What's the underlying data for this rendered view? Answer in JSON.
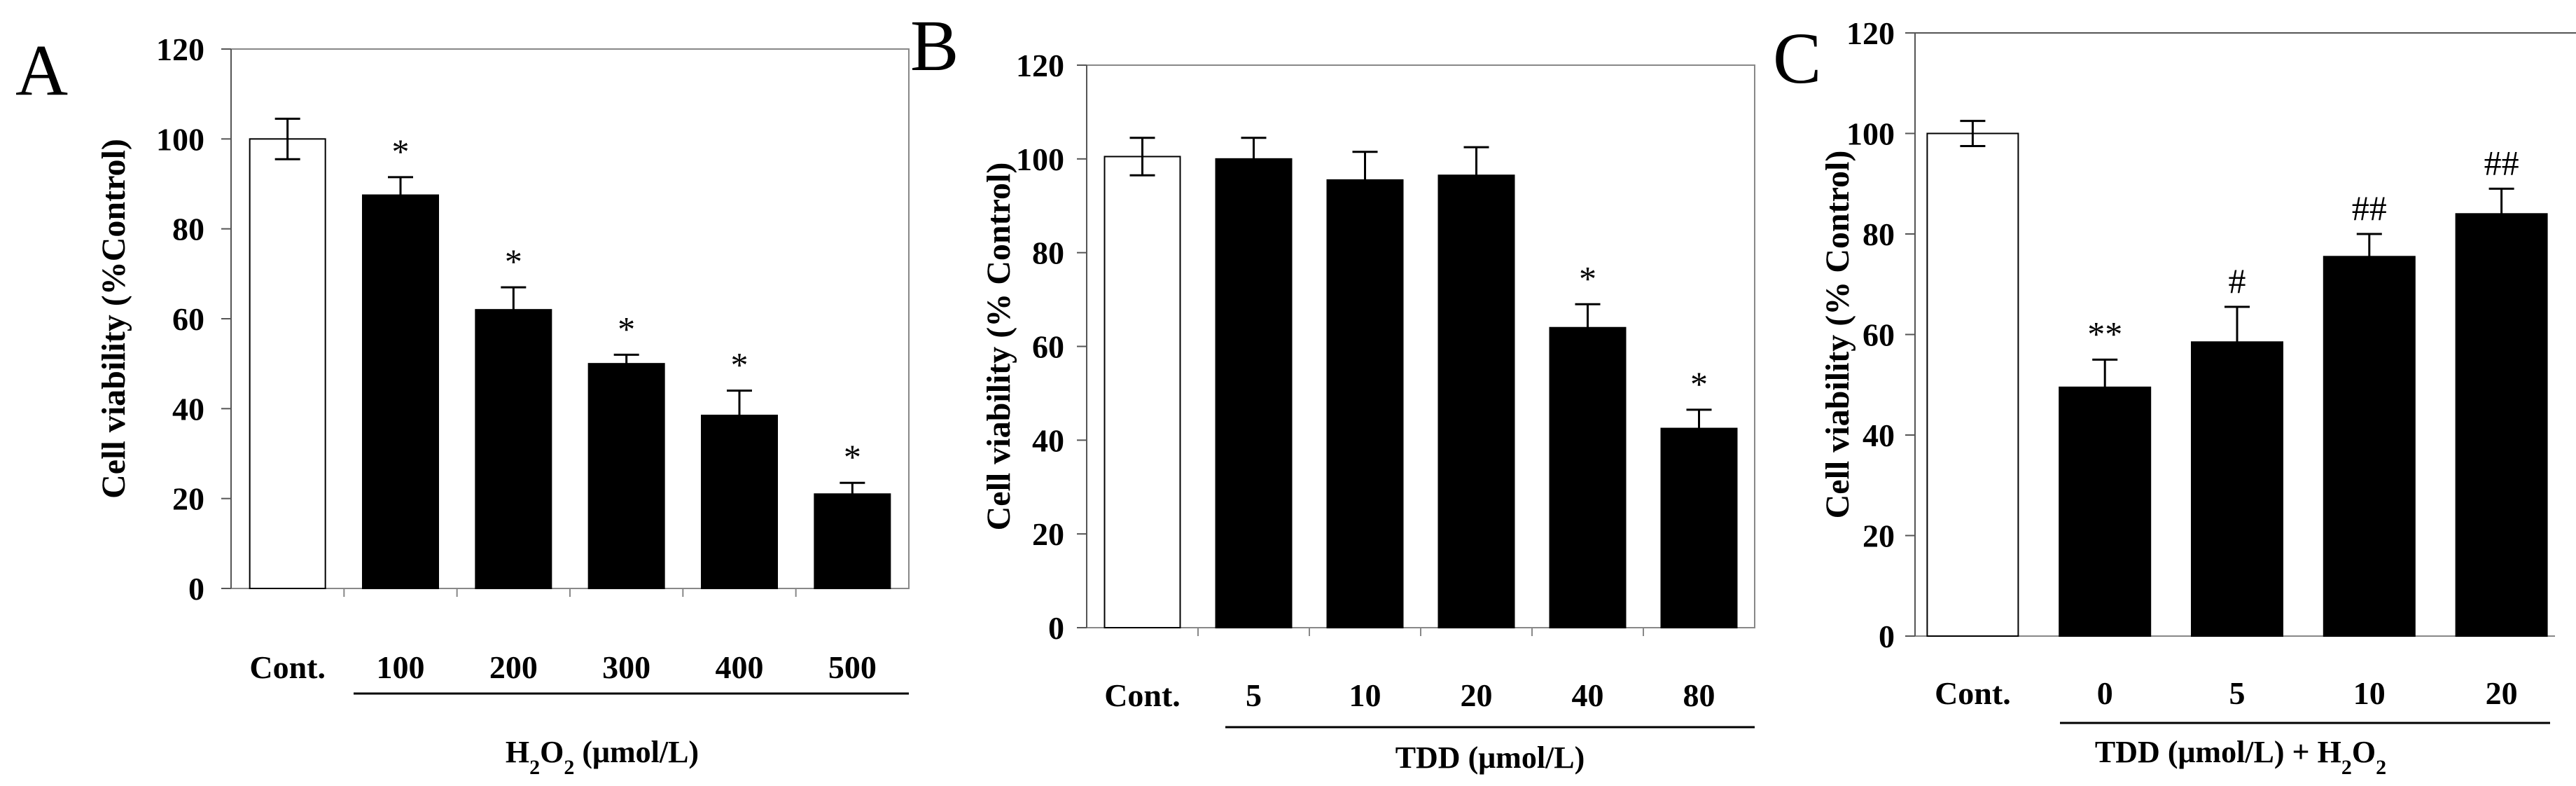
{
  "chart_data": [
    {
      "panel": "A",
      "type": "bar",
      "categories": [
        "Cont.",
        "100",
        "200",
        "300",
        "400",
        "500"
      ],
      "values": [
        100,
        87.5,
        62,
        50,
        38.5,
        21
      ],
      "errors": [
        4.5,
        4,
        5,
        2,
        5.5,
        2.5
      ],
      "significance": [
        "",
        "*",
        "*",
        "*",
        "*",
        "*"
      ],
      "bar_fill": [
        "#ffffff",
        "#000000",
        "#000000",
        "#000000",
        "#000000",
        "#000000"
      ],
      "ylabel": "Cell viability (%Control)",
      "xgroup": {
        "pre": "H",
        "sub": "2",
        "mid": "O",
        "sub2": "2",
        "post": " (μmol/L)"
      },
      "ylim": [
        0,
        120
      ],
      "yticks": [
        0,
        20,
        40,
        60,
        80,
        100,
        120
      ],
      "frame": "box"
    },
    {
      "panel": "B",
      "type": "bar",
      "categories": [
        "Cont.",
        "5",
        "10",
        "20",
        "40",
        "80"
      ],
      "values": [
        100.5,
        100,
        95.5,
        96.5,
        64,
        42.5
      ],
      "errors": [
        4,
        4.5,
        6,
        6,
        5,
        4
      ],
      "significance": [
        "",
        "",
        "",
        "",
        "*",
        "*"
      ],
      "bar_fill": [
        "#ffffff",
        "#000000",
        "#000000",
        "#000000",
        "#000000",
        "#000000"
      ],
      "ylabel": "Cell viability (% Control)",
      "xgroup": {
        "pre": "TDD (μmol/L)",
        "sub": "",
        "mid": "",
        "sub2": "",
        "post": ""
      },
      "ylim": [
        0,
        120
      ],
      "yticks": [
        0,
        20,
        40,
        60,
        80,
        100,
        120
      ],
      "frame": "box"
    },
    {
      "panel": "C",
      "type": "bar",
      "categories": [
        "Cont.",
        "0",
        "5",
        "10",
        "20"
      ],
      "values": [
        100,
        49.5,
        58.5,
        75.5,
        84
      ],
      "errors": [
        2.5,
        5.5,
        7,
        4.5,
        5
      ],
      "significance": [
        "",
        "**",
        "#",
        "##",
        "##"
      ],
      "bar_fill": [
        "#ffffff",
        "#000000",
        "#000000",
        "#000000",
        "#000000"
      ],
      "ylabel": "Cell viability (% Control)",
      "xgroup": {
        "pre": "TDD (μmol/L) + H",
        "sub": "2",
        "mid": "O",
        "sub2": "2",
        "post": ""
      },
      "ylim": [
        0,
        120
      ],
      "yticks": [
        0,
        20,
        40,
        60,
        80,
        100,
        120
      ],
      "frame": "open"
    }
  ]
}
